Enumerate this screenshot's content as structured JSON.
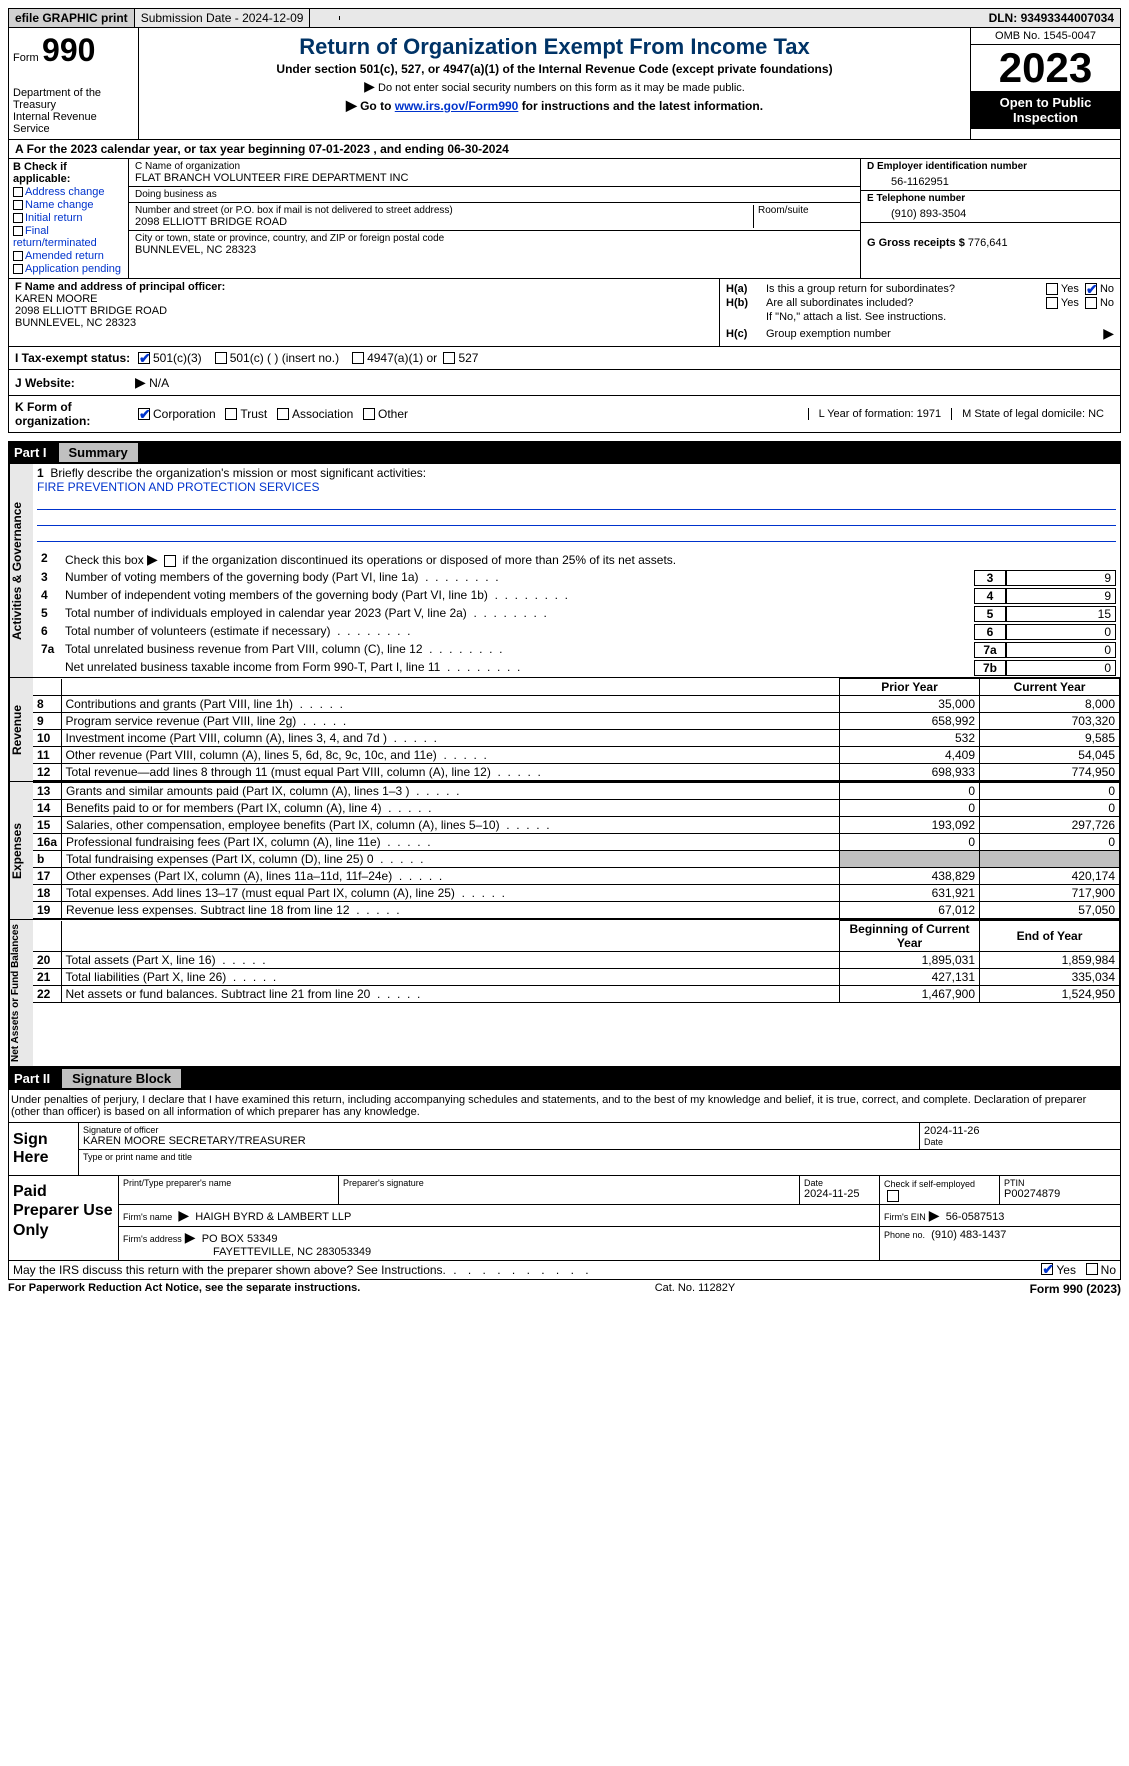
{
  "topbar": {
    "efile": "efile GRAPHIC print",
    "submission_label": "Submission Date - ",
    "submission_date": "2024-12-09",
    "dln_label": "DLN: ",
    "dln": "93493344007034"
  },
  "header": {
    "form_label": "Form",
    "form_number": "990",
    "dept": "Department of the Treasury\nInternal Revenue Service",
    "title": "Return of Organization Exempt From Income Tax",
    "subtitle": "Under section 501(c), 527, or 4947(a)(1) of the Internal Revenue Code (except private foundations)",
    "note": "Do not enter social security numbers on this form as it may be made public.",
    "goto_prefix": "Go to ",
    "goto_link": "www.irs.gov/Form990",
    "goto_suffix": " for instructions and the latest information.",
    "omb": "OMB No. 1545-0047",
    "year": "2023",
    "open": "Open to Public Inspection"
  },
  "line_a": {
    "text_prefix": "For the 2023 calendar year, or tax year beginning ",
    "begin": "07-01-2023",
    "mid": " , and ending ",
    "end": "06-30-2024"
  },
  "box_b": {
    "label": "B Check if applicable:",
    "items": [
      "Address change",
      "Name change",
      "Initial return",
      "Final return/terminated",
      "Amended return",
      "Application pending"
    ]
  },
  "box_c": {
    "name_label": "C Name of organization",
    "name": "FLAT BRANCH VOLUNTEER FIRE DEPARTMENT INC",
    "dba_label": "Doing business as",
    "dba": "",
    "addr_label": "Number and street (or P.O. box if mail is not delivered to street address)",
    "addr": "2098 ELLIOTT BRIDGE ROAD",
    "room_label": "Room/suite",
    "city_label": "City or town, state or province, country, and ZIP or foreign postal code",
    "city": "BUNNLEVEL, NC  28323"
  },
  "box_d": {
    "label": "D Employer identification number",
    "value": "56-1162951"
  },
  "box_e": {
    "label": "E Telephone number",
    "value": "(910) 893-3504"
  },
  "box_g": {
    "label": "G Gross receipts $ ",
    "value": "776,641"
  },
  "box_f": {
    "label": "F  Name and address of principal officer:",
    "name": "KAREN MOORE",
    "addr1": "2098 ELLIOTT BRIDGE ROAD",
    "addr2": "BUNNLEVEL, NC  28323"
  },
  "box_h": {
    "a_label": "H(a)",
    "a_text": "Is this a group return for subordinates?",
    "a_yes": "Yes",
    "a_no": "No",
    "a_checked": "no",
    "b_label": "H(b)",
    "b_text": "Are all subordinates included?",
    "b_yes": "Yes",
    "b_no": "No",
    "b_note": "If \"No,\" attach a list. See instructions.",
    "c_label": "H(c)",
    "c_text": "Group exemption number",
    "c_arrow": "▶"
  },
  "box_i": {
    "label": "I   Tax-exempt status:",
    "opt1": "501(c)(3)",
    "opt2": "501(c) (   ) (insert no.)",
    "opt3": "4947(a)(1) or",
    "opt4": "527",
    "checked": 1
  },
  "box_j": {
    "label": "J   Website:",
    "arrow": "▶",
    "value": "N/A"
  },
  "box_k": {
    "label": "K Form of organization:",
    "opts": [
      "Corporation",
      "Trust",
      "Association",
      "Other"
    ],
    "checked": 0,
    "l_label": "L Year of formation: ",
    "l_value": "1971",
    "m_label": "M State of legal domicile: ",
    "m_value": "NC"
  },
  "part1": {
    "label": "Part I",
    "title": "Summary"
  },
  "vtabs": {
    "gov": "Activities & Governance",
    "rev": "Revenue",
    "exp": "Expenses",
    "net": "Net Assets or Fund Balances"
  },
  "summary": {
    "l1_label": "1",
    "l1_text": "Briefly describe the organization's mission or most significant activities:",
    "l1_mission": "FIRE PREVENTION AND PROTECTION SERVICES",
    "l2_label": "2",
    "l2_text": "Check this box",
    "l2_suffix": "if the organization discontinued its operations or disposed of more than 25% of its net assets.",
    "lines_gov": [
      {
        "n": "3",
        "d": "Number of voting members of the governing body (Part VI, line 1a)",
        "b": "3",
        "v": "9"
      },
      {
        "n": "4",
        "d": "Number of independent voting members of the governing body (Part VI, line 1b)",
        "b": "4",
        "v": "9"
      },
      {
        "n": "5",
        "d": "Total number of individuals employed in calendar year 2023 (Part V, line 2a)",
        "b": "5",
        "v": "15"
      },
      {
        "n": "6",
        "d": "Total number of volunteers (estimate if necessary)",
        "b": "6",
        "v": "0"
      },
      {
        "n": "7a",
        "d": "Total unrelated business revenue from Part VIII, column (C), line 12",
        "b": "7a",
        "v": "0"
      },
      {
        "n": "",
        "d": "Net unrelated business taxable income from Form 990-T, Part I, line 11",
        "b": "7b",
        "v": "0"
      }
    ],
    "col_hdr_prior": "Prior Year",
    "col_hdr_current": "Current Year",
    "col_hdr_begin": "Beginning of Current Year",
    "col_hdr_end": "End of Year",
    "rev_lines": [
      {
        "n": "8",
        "d": "Contributions and grants (Part VIII, line 1h)",
        "py": "35,000",
        "cy": "8,000"
      },
      {
        "n": "9",
        "d": "Program service revenue (Part VIII, line 2g)",
        "py": "658,992",
        "cy": "703,320"
      },
      {
        "n": "10",
        "d": "Investment income (Part VIII, column (A), lines 3, 4, and 7d )",
        "py": "532",
        "cy": "9,585"
      },
      {
        "n": "11",
        "d": "Other revenue (Part VIII, column (A), lines 5, 6d, 8c, 9c, 10c, and 11e)",
        "py": "4,409",
        "cy": "54,045"
      },
      {
        "n": "12",
        "d": "Total revenue—add lines 8 through 11 (must equal Part VIII, column (A), line 12)",
        "py": "698,933",
        "cy": "774,950"
      }
    ],
    "exp_lines": [
      {
        "n": "13",
        "d": "Grants and similar amounts paid (Part IX, column (A), lines 1–3 )",
        "py": "0",
        "cy": "0"
      },
      {
        "n": "14",
        "d": "Benefits paid to or for members (Part IX, column (A), line 4)",
        "py": "0",
        "cy": "0"
      },
      {
        "n": "15",
        "d": "Salaries, other compensation, employee benefits (Part IX, column (A), lines 5–10)",
        "py": "193,092",
        "cy": "297,726"
      },
      {
        "n": "16a",
        "d": "Professional fundraising fees (Part IX, column (A), line 11e)",
        "py": "0",
        "cy": "0"
      },
      {
        "n": "b",
        "d": "Total fundraising expenses (Part IX, column (D), line 25) 0",
        "py": "GRAY",
        "cy": "GRAY"
      },
      {
        "n": "17",
        "d": "Other expenses (Part IX, column (A), lines 11a–11d, 11f–24e)",
        "py": "438,829",
        "cy": "420,174"
      },
      {
        "n": "18",
        "d": "Total expenses. Add lines 13–17 (must equal Part IX, column (A), line 25)",
        "py": "631,921",
        "cy": "717,900"
      },
      {
        "n": "19",
        "d": "Revenue less expenses. Subtract line 18 from line 12",
        "py": "67,012",
        "cy": "57,050"
      }
    ],
    "net_lines": [
      {
        "n": "20",
        "d": "Total assets (Part X, line 16)",
        "py": "1,895,031",
        "cy": "1,859,984"
      },
      {
        "n": "21",
        "d": "Total liabilities (Part X, line 26)",
        "py": "427,131",
        "cy": "335,034"
      },
      {
        "n": "22",
        "d": "Net assets or fund balances. Subtract line 21 from line 20",
        "py": "1,467,900",
        "cy": "1,524,950"
      }
    ]
  },
  "part2": {
    "label": "Part II",
    "title": "Signature Block"
  },
  "sig": {
    "penalty": "Under penalties of perjury, I declare that I have examined this return, including accompanying schedules and statements, and to the best of my knowledge and belief, it is true, correct, and complete. Declaration of preparer (other than officer) is based on all information of which preparer has any knowledge.",
    "sign_here": "Sign Here",
    "sig_officer_lbl": "Signature of officer",
    "sig_date": "2024-11-26",
    "date_lbl": "Date",
    "officer_name": "KAREN MOORE  SECRETARY/TREASURER",
    "type_lbl": "Type or print name and title"
  },
  "prep": {
    "label": "Paid Preparer Use Only",
    "print_lbl": "Print/Type preparer's name",
    "prep_sig_lbl": "Preparer's signature",
    "date_lbl": "Date",
    "date": "2024-11-25",
    "check_lbl": "Check         if self-employed",
    "ptin_lbl": "PTIN",
    "ptin": "P00274879",
    "firm_name_lbl": "Firm's name",
    "firm_name": "HAIGH BYRD & LAMBERT LLP",
    "firm_ein_lbl": "Firm's EIN",
    "firm_ein": "56-0587513",
    "firm_addr_lbl": "Firm's address",
    "firm_addr1": "PO BOX 53349",
    "firm_addr2": "FAYETTEVILLE, NC  283053349",
    "phone_lbl": "Phone no.",
    "phone": "(910) 483-1437"
  },
  "discuss": {
    "text": "May the IRS discuss this return with the preparer shown above? See Instructions.",
    "yes": "Yes",
    "no": "No"
  },
  "footer": {
    "pra": "For Paperwork Reduction Act Notice, see the separate instructions.",
    "cat": "Cat. No. 11282Y",
    "formref": "Form 990 (2023)"
  }
}
